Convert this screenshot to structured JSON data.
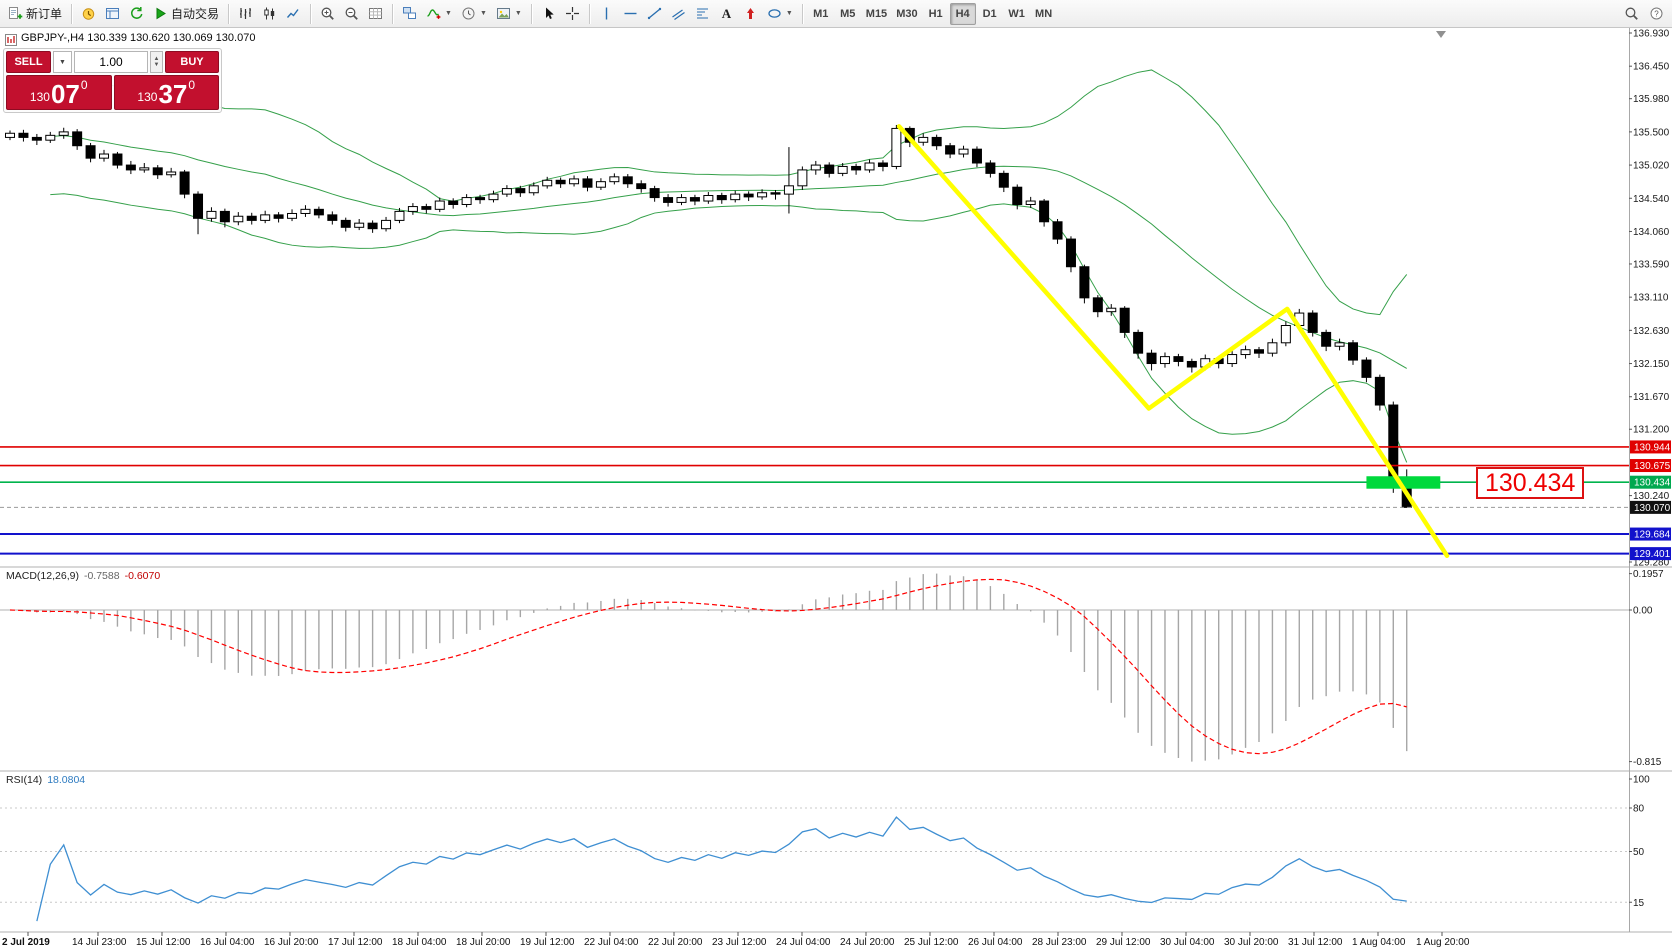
{
  "toolbar": {
    "items": [
      {
        "name": "new-order",
        "icon": "new-order",
        "label": "新订单"
      },
      {
        "sep": true
      },
      {
        "name": "market-watch",
        "icon": "market-watch"
      },
      {
        "name": "data-window",
        "icon": "data-window"
      },
      {
        "name": "refresh",
        "icon": "refresh"
      },
      {
        "name": "autotrading",
        "icon": "autotrade",
        "label": "自动交易"
      },
      {
        "sep": true
      },
      {
        "name": "bar-chart",
        "icon": "bar-chart"
      },
      {
        "name": "candlestick-chart",
        "icon": "candlestick"
      },
      {
        "name": "line-chart",
        "icon": "line-chart"
      },
      {
        "sep": true
      },
      {
        "name": "zoom-in",
        "icon": "zoom-in"
      },
      {
        "name": "zoom-out",
        "icon": "zoom-out"
      },
      {
        "name": "grid",
        "icon": "grid-chart"
      },
      {
        "sep": true
      },
      {
        "name": "tile-windows",
        "icon": "tile-windows"
      },
      {
        "name": "indicators",
        "icon": "indicators",
        "caret": true
      },
      {
        "name": "periods",
        "icon": "clock",
        "caret": true
      },
      {
        "name": "templates",
        "icon": "template",
        "caret": true
      },
      {
        "sep": true
      },
      {
        "name": "cursor",
        "icon": "cursor"
      },
      {
        "name": "crosshair",
        "icon": "crosshair"
      },
      {
        "sep": true
      },
      {
        "name": "vertical-line",
        "icon": "vline"
      },
      {
        "name": "horizontal-line",
        "icon": "hline"
      },
      {
        "name": "trendline",
        "icon": "trendline"
      },
      {
        "name": "equidistant-channel",
        "icon": "channel"
      },
      {
        "name": "fibonacci",
        "icon": "fibonacci"
      },
      {
        "name": "text-tool",
        "icon": "text"
      },
      {
        "name": "arrows-tool",
        "icon": "arrows"
      },
      {
        "name": "shapes",
        "icon": "shapes",
        "caret": true
      },
      {
        "sep": true
      },
      {
        "tf": true,
        "label": "M1"
      },
      {
        "tf": true,
        "label": "M5"
      },
      {
        "tf": true,
        "label": "M15"
      },
      {
        "tf": true,
        "label": "M30"
      },
      {
        "tf": true,
        "label": "H1"
      },
      {
        "tf": true,
        "label": "H4",
        "active": true
      },
      {
        "tf": true,
        "label": "D1"
      },
      {
        "tf": true,
        "label": "W1"
      },
      {
        "tf": true,
        "label": "MN"
      }
    ],
    "right_items": [
      {
        "name": "search",
        "icon": "search"
      },
      {
        "name": "help",
        "icon": "question"
      }
    ]
  },
  "chart": {
    "symbol_info": "GBPJPY-,H4  130.339 130.620 130.069 130.070",
    "one_click": {
      "sell_label": "SELL",
      "buy_label": "BUY",
      "volume": "1.00",
      "sell_price": {
        "prefix": "130",
        "big": "07",
        "sup": "0"
      },
      "buy_price": {
        "prefix": "130",
        "big": "37",
        "sup": "0"
      }
    }
  },
  "chart_data": {
    "type": "candlestick",
    "symbol": "GBPJPY-",
    "timeframe": "H4",
    "ohlc_display": {
      "open": "130.339",
      "high": "130.620",
      "low": "130.069",
      "close": "130.070"
    },
    "ylim": [
      129.22,
      136.99
    ],
    "candles": [
      [
        135.42,
        135.52,
        135.38,
        135.48
      ],
      [
        135.48,
        135.53,
        135.36,
        135.42
      ],
      [
        135.42,
        135.47,
        135.31,
        135.38
      ],
      [
        135.38,
        135.5,
        135.34,
        135.45
      ],
      [
        135.45,
        135.56,
        135.4,
        135.5
      ],
      [
        135.5,
        135.54,
        135.24,
        135.3
      ],
      [
        135.3,
        135.34,
        135.06,
        135.12
      ],
      [
        135.12,
        135.24,
        135.07,
        135.18
      ],
      [
        135.18,
        135.21,
        134.97,
        135.02
      ],
      [
        135.02,
        135.08,
        134.89,
        134.95
      ],
      [
        134.95,
        135.05,
        134.91,
        134.98
      ],
      [
        134.98,
        135.02,
        134.82,
        134.88
      ],
      [
        134.88,
        134.98,
        134.84,
        134.92
      ],
      [
        134.92,
        134.95,
        134.54,
        134.6
      ],
      [
        134.6,
        134.64,
        134.02,
        134.25
      ],
      [
        134.25,
        134.41,
        134.2,
        134.35
      ],
      [
        134.35,
        134.39,
        134.12,
        134.2
      ],
      [
        134.2,
        134.34,
        134.15,
        134.28
      ],
      [
        134.28,
        134.33,
        134.16,
        134.22
      ],
      [
        134.22,
        134.36,
        134.18,
        134.3
      ],
      [
        134.3,
        134.34,
        134.19,
        134.25
      ],
      [
        134.25,
        134.38,
        134.21,
        134.32
      ],
      [
        134.32,
        134.44,
        134.27,
        134.38
      ],
      [
        134.38,
        134.42,
        134.25,
        134.3
      ],
      [
        134.3,
        134.35,
        134.16,
        134.22
      ],
      [
        134.22,
        134.26,
        134.06,
        134.12
      ],
      [
        134.12,
        134.24,
        134.08,
        134.18
      ],
      [
        134.18,
        134.22,
        134.04,
        134.1
      ],
      [
        134.1,
        134.27,
        134.06,
        134.22
      ],
      [
        134.22,
        134.4,
        134.18,
        134.35
      ],
      [
        134.35,
        134.47,
        134.3,
        134.42
      ],
      [
        134.42,
        134.46,
        134.32,
        134.38
      ],
      [
        134.38,
        134.55,
        134.34,
        134.5
      ],
      [
        134.5,
        134.54,
        134.39,
        134.45
      ],
      [
        134.45,
        134.6,
        134.41,
        134.55
      ],
      [
        134.55,
        134.59,
        134.46,
        134.52
      ],
      [
        134.52,
        134.65,
        134.48,
        134.6
      ],
      [
        134.6,
        134.73,
        134.56,
        134.68
      ],
      [
        134.68,
        134.72,
        134.56,
        134.62
      ],
      [
        134.62,
        134.77,
        134.58,
        134.72
      ],
      [
        134.72,
        134.85,
        134.68,
        134.8
      ],
      [
        134.8,
        134.84,
        134.69,
        134.75
      ],
      [
        134.75,
        134.87,
        134.71,
        134.82
      ],
      [
        134.82,
        134.86,
        134.64,
        134.7
      ],
      [
        134.7,
        134.83,
        134.66,
        134.78
      ],
      [
        134.78,
        134.9,
        134.74,
        134.85
      ],
      [
        134.85,
        134.89,
        134.69,
        134.75
      ],
      [
        134.75,
        134.8,
        134.62,
        134.68
      ],
      [
        134.68,
        134.72,
        134.49,
        134.55
      ],
      [
        134.55,
        134.6,
        134.42,
        134.48
      ],
      [
        134.48,
        134.6,
        134.44,
        134.55
      ],
      [
        134.55,
        134.59,
        134.44,
        134.5
      ],
      [
        134.5,
        134.63,
        134.46,
        134.58
      ],
      [
        134.58,
        134.62,
        134.46,
        134.52
      ],
      [
        134.52,
        134.65,
        134.48,
        134.6
      ],
      [
        134.6,
        134.64,
        134.5,
        134.56
      ],
      [
        134.56,
        134.67,
        134.52,
        134.62
      ],
      [
        134.62,
        134.66,
        134.52,
        134.6
      ],
      [
        134.6,
        135.28,
        134.32,
        134.72
      ],
      [
        134.72,
        135.0,
        134.66,
        134.95
      ],
      [
        134.95,
        135.08,
        134.88,
        135.02
      ],
      [
        135.02,
        135.06,
        134.84,
        134.9
      ],
      [
        134.9,
        135.05,
        134.86,
        135.0
      ],
      [
        135.0,
        135.04,
        134.88,
        134.95
      ],
      [
        134.95,
        135.1,
        134.91,
        135.05
      ],
      [
        135.05,
        135.09,
        134.93,
        135.0
      ],
      [
        135.0,
        135.6,
        134.96,
        135.55
      ],
      [
        135.55,
        135.58,
        135.28,
        135.35
      ],
      [
        135.35,
        135.48,
        135.3,
        135.42
      ],
      [
        135.42,
        135.46,
        135.24,
        135.3
      ],
      [
        135.3,
        135.34,
        135.12,
        135.18
      ],
      [
        135.18,
        135.3,
        135.13,
        135.25
      ],
      [
        135.25,
        135.29,
        134.99,
        135.05
      ],
      [
        135.05,
        135.09,
        134.84,
        134.9
      ],
      [
        134.9,
        134.94,
        134.63,
        134.7
      ],
      [
        134.7,
        134.74,
        134.38,
        134.45
      ],
      [
        134.45,
        134.56,
        134.4,
        134.5
      ],
      [
        134.5,
        134.53,
        134.13,
        134.2
      ],
      [
        134.2,
        134.24,
        133.88,
        133.95
      ],
      [
        133.95,
        133.99,
        133.47,
        133.55
      ],
      [
        133.55,
        133.58,
        133.02,
        133.1
      ],
      [
        133.1,
        133.14,
        132.82,
        132.9
      ],
      [
        132.9,
        133.01,
        132.84,
        132.95
      ],
      [
        132.95,
        132.98,
        132.52,
        132.6
      ],
      [
        132.6,
        132.64,
        132.22,
        132.3
      ],
      [
        132.3,
        132.35,
        132.05,
        132.15
      ],
      [
        132.15,
        132.31,
        132.09,
        132.25
      ],
      [
        132.25,
        132.29,
        132.11,
        132.18
      ],
      [
        132.18,
        132.22,
        132.02,
        132.1
      ],
      [
        132.1,
        132.28,
        132.05,
        132.22
      ],
      [
        132.22,
        132.26,
        132.08,
        132.15
      ],
      [
        132.15,
        132.34,
        132.1,
        132.28
      ],
      [
        132.28,
        132.41,
        132.22,
        132.35
      ],
      [
        132.35,
        132.39,
        132.23,
        132.3
      ],
      [
        132.3,
        132.51,
        132.25,
        132.45
      ],
      [
        132.45,
        132.76,
        132.4,
        132.7
      ],
      [
        132.7,
        132.94,
        132.63,
        132.88
      ],
      [
        132.88,
        132.92,
        132.54,
        132.6
      ],
      [
        132.6,
        132.64,
        132.33,
        132.4
      ],
      [
        132.4,
        132.51,
        132.34,
        132.45
      ],
      [
        132.45,
        132.49,
        132.13,
        132.2
      ],
      [
        132.2,
        132.24,
        131.88,
        131.95
      ],
      [
        131.95,
        131.99,
        131.47,
        131.55
      ],
      [
        131.55,
        131.6,
        130.28,
        130.35
      ],
      [
        130.339,
        130.62,
        130.069,
        130.07
      ]
    ],
    "price_scale": {
      "ticks": [
        "136.930",
        "136.450",
        "135.980",
        "135.500",
        "135.020",
        "134.540",
        "134.060",
        "133.590",
        "133.110",
        "132.630",
        "132.150",
        "131.670",
        "131.200",
        "130.240",
        "129.280"
      ],
      "badges": [
        {
          "label": "130.944",
          "color": "#e00000"
        },
        {
          "label": "130.675",
          "color": "#e00000"
        },
        {
          "label": "130.434",
          "color": "#00a84f"
        },
        {
          "label": "130.070",
          "color": "#101010"
        },
        {
          "label": "129.684",
          "color": "#1212cc"
        },
        {
          "label": "129.401",
          "color": "#1212cc"
        }
      ]
    },
    "horizontal_lines": [
      {
        "price": 130.944,
        "color": "#e00000",
        "width": 1.6
      },
      {
        "price": 130.675,
        "color": "#e00000",
        "width": 1.6
      },
      {
        "price": 130.434,
        "color": "#00b44c",
        "width": 1.6
      },
      {
        "price": 129.684,
        "color": "#1212cc",
        "width": 2
      },
      {
        "price": 129.401,
        "color": "#1212cc",
        "width": 2
      },
      {
        "price": 130.07,
        "color": "#9a9a9a",
        "width": 1,
        "dash": "4 3"
      }
    ],
    "highlight_rect": {
      "start_index": 101,
      "end_index": 106.5,
      "top_price": 130.52,
      "bottom_price": 130.34,
      "color": "#00d93c"
    },
    "trend_polyline": {
      "color": "#ffff00",
      "width": 4.5,
      "points": [
        [
          66.2,
          135.58
        ],
        [
          84.8,
          131.5
        ],
        [
          95.1,
          132.94
        ],
        [
          107.0,
          129.37
        ]
      ]
    },
    "annotation": {
      "text": "130.434",
      "color": "#ee0000"
    },
    "indicators": {
      "bollinger": {
        "period": 20,
        "deviation": 2,
        "color": "#35a04a"
      },
      "macd": {
        "label": "MACD(12,26,9)",
        "value": "-0.7588",
        "signal_value": "-0.6070",
        "scale_top": "0.1957",
        "scale_zero": "0.00",
        "scale_bottom": "-0.815",
        "hist_color": "#a6a6a6",
        "signal_color": "#ff0000"
      },
      "rsi": {
        "label": "RSI(14)",
        "value": "18.0804",
        "levels": [
          "100",
          "80",
          "50",
          "15"
        ],
        "color": "#3f8fd2"
      }
    },
    "time_axis": [
      "2 Jul 2019",
      "14 Jul 23:00",
      "15 Jul 12:00",
      "16 Jul 04:00",
      "16 Jul 20:00",
      "17 Jul 12:00",
      "18 Jul 04:00",
      "18 Jul 20:00",
      "19 Jul 12:00",
      "22 Jul 04:00",
      "22 Jul 20:00",
      "23 Jul 12:00",
      "24 Jul 04:00",
      "24 Jul 20:00",
      "25 Jul 12:00",
      "26 Jul 04:00",
      "28 Jul 23:00",
      "29 Jul 12:00",
      "30 Jul 04:00",
      "30 Jul 20:00",
      "31 Jul 12:00",
      "1 Aug 04:00",
      "1 Aug 20:00"
    ]
  }
}
